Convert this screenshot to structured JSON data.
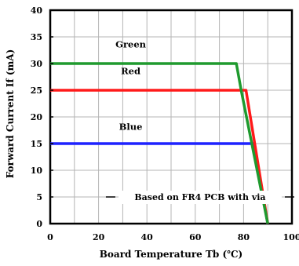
{
  "chart_data": {
    "type": "line",
    "title": "",
    "xlabel": "Board Temperature Tb (℃)",
    "ylabel": "Forward Current If (mA)",
    "xlim": [
      0,
      100
    ],
    "ylim": [
      0,
      40
    ],
    "x_ticks": [
      0,
      20,
      40,
      60,
      80,
      100
    ],
    "y_ticks": [
      0,
      5,
      10,
      15,
      20,
      25,
      30,
      35,
      40
    ],
    "grid": true,
    "series": [
      {
        "name": "Green",
        "color": "#1f9a2e",
        "x": [
          0,
          77,
          79,
          90
        ],
        "y": [
          30,
          30,
          25,
          0
        ]
      },
      {
        "name": "Red",
        "color": "#ff1a1a",
        "x": [
          0,
          81,
          90
        ],
        "y": [
          25,
          25,
          0
        ]
      },
      {
        "name": "Blue",
        "color": "#1e22ff",
        "x": [
          0,
          84,
          90
        ],
        "y": [
          15,
          15,
          0
        ]
      }
    ],
    "annotations": [
      {
        "text": "Based on FR4 PCB with via",
        "x": 62,
        "y": 5
      }
    ]
  }
}
